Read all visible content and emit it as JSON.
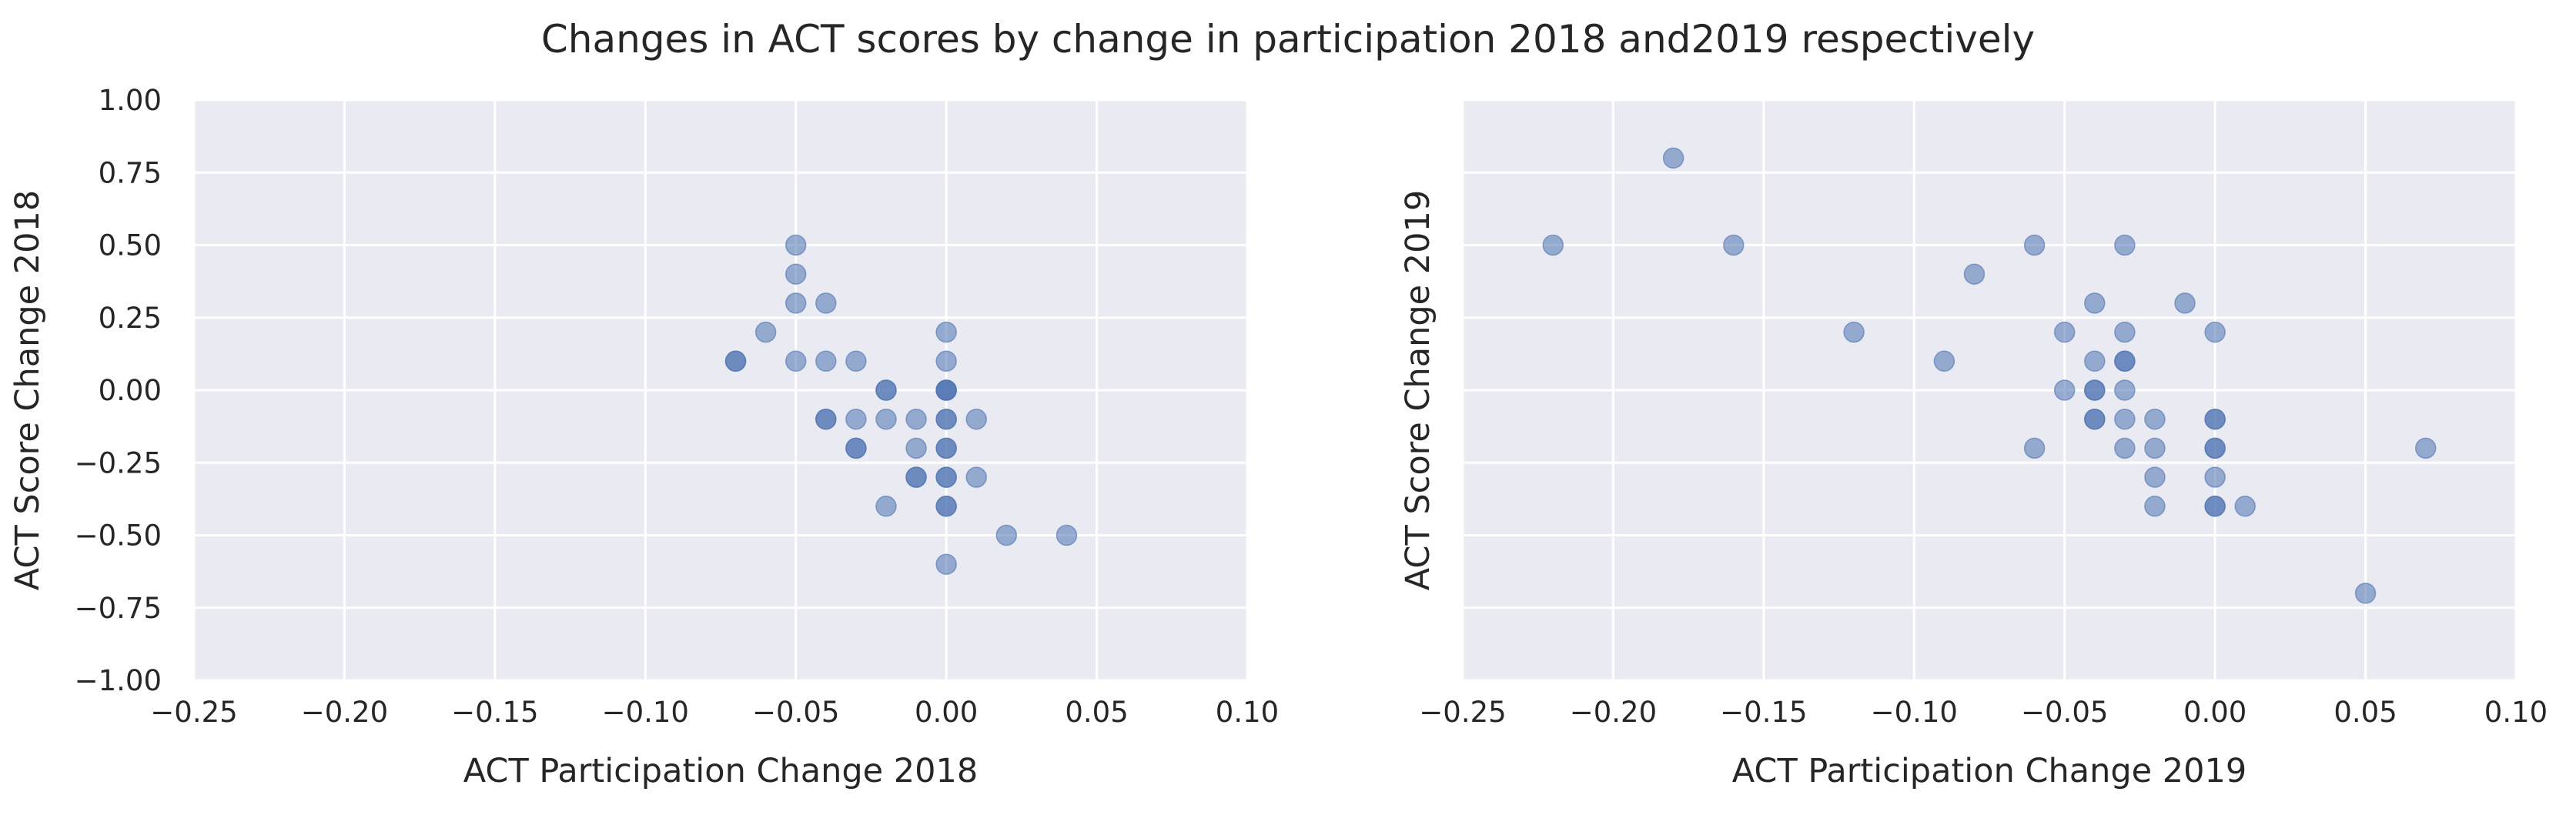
{
  "figure": {
    "title": "Changes in ACT scores by change in participation 2018 and2019 respectively"
  },
  "chart_data": [
    {
      "type": "scatter",
      "xlabel": "ACT Participation Change 2018",
      "ylabel": "ACT Score Change 2018",
      "xlim": [
        -0.25,
        0.1
      ],
      "ylim": [
        -1.0,
        1.0
      ],
      "xticks": [
        "−0.25",
        "−0.20",
        "−0.15",
        "−0.10",
        "−0.05",
        "0.00",
        "0.05",
        "0.10"
      ],
      "yticks": [
        "−1.00",
        "−0.75",
        "−0.50",
        "−0.25",
        "0.00",
        "0.25",
        "0.50",
        "0.75",
        "1.00"
      ],
      "grid": true,
      "marker_color": "#4c72b0",
      "points": [
        [
          -0.07,
          0.1
        ],
        [
          -0.07,
          0.1
        ],
        [
          -0.06,
          0.2
        ],
        [
          -0.05,
          0.5
        ],
        [
          -0.05,
          0.4
        ],
        [
          -0.05,
          0.3
        ],
        [
          -0.05,
          0.1
        ],
        [
          -0.04,
          0.3
        ],
        [
          -0.04,
          0.1
        ],
        [
          -0.04,
          -0.1
        ],
        [
          -0.04,
          -0.1
        ],
        [
          -0.03,
          0.1
        ],
        [
          -0.03,
          -0.1
        ],
        [
          -0.03,
          -0.2
        ],
        [
          -0.03,
          -0.2
        ],
        [
          -0.02,
          0.0
        ],
        [
          -0.02,
          0.0
        ],
        [
          -0.02,
          -0.1
        ],
        [
          -0.02,
          -0.4
        ],
        [
          -0.01,
          -0.1
        ],
        [
          -0.01,
          -0.2
        ],
        [
          -0.01,
          -0.3
        ],
        [
          -0.01,
          -0.3
        ],
        [
          0.0,
          0.2
        ],
        [
          0.0,
          0.1
        ],
        [
          0.0,
          0.0
        ],
        [
          0.0,
          0.0
        ],
        [
          0.0,
          0.0
        ],
        [
          0.0,
          -0.1
        ],
        [
          0.0,
          -0.1
        ],
        [
          0.0,
          -0.2
        ],
        [
          0.0,
          -0.2
        ],
        [
          0.0,
          -0.3
        ],
        [
          0.0,
          -0.3
        ],
        [
          0.0,
          -0.4
        ],
        [
          0.0,
          -0.4
        ],
        [
          0.0,
          -0.6
        ],
        [
          0.01,
          -0.1
        ],
        [
          0.01,
          -0.3
        ],
        [
          0.02,
          -0.5
        ],
        [
          0.04,
          -0.5
        ]
      ]
    },
    {
      "type": "scatter",
      "xlabel": "ACT Participation Change 2019",
      "ylabel": "ACT Score Change 2019",
      "xlim": [
        -0.25,
        0.1
      ],
      "ylim": [
        -1.0,
        1.0
      ],
      "xticks": [
        "−0.25",
        "−0.20",
        "−0.15",
        "−0.10",
        "−0.05",
        "0.00",
        "0.05",
        "0.10"
      ],
      "yticks": [],
      "grid": true,
      "marker_color": "#4c72b0",
      "points": [
        [
          -0.22,
          0.5
        ],
        [
          -0.18,
          0.8
        ],
        [
          -0.16,
          0.5
        ],
        [
          -0.12,
          0.2
        ],
        [
          -0.09,
          0.1
        ],
        [
          -0.08,
          0.4
        ],
        [
          -0.06,
          0.5
        ],
        [
          -0.06,
          -0.2
        ],
        [
          -0.05,
          0.2
        ],
        [
          -0.05,
          0.0
        ],
        [
          -0.04,
          0.3
        ],
        [
          -0.04,
          0.1
        ],
        [
          -0.04,
          0.0
        ],
        [
          -0.04,
          0.0
        ],
        [
          -0.04,
          -0.1
        ],
        [
          -0.04,
          -0.1
        ],
        [
          -0.03,
          0.5
        ],
        [
          -0.03,
          0.2
        ],
        [
          -0.03,
          0.1
        ],
        [
          -0.03,
          0.1
        ],
        [
          -0.03,
          0.0
        ],
        [
          -0.03,
          -0.1
        ],
        [
          -0.03,
          -0.2
        ],
        [
          -0.02,
          -0.1
        ],
        [
          -0.02,
          -0.2
        ],
        [
          -0.02,
          -0.3
        ],
        [
          -0.02,
          -0.4
        ],
        [
          -0.01,
          0.3
        ],
        [
          0.0,
          0.2
        ],
        [
          0.0,
          -0.1
        ],
        [
          0.0,
          -0.1
        ],
        [
          0.0,
          -0.2
        ],
        [
          0.0,
          -0.2
        ],
        [
          0.0,
          -0.3
        ],
        [
          0.0,
          -0.4
        ],
        [
          0.0,
          -0.4
        ],
        [
          0.01,
          -0.4
        ],
        [
          0.05,
          -0.7
        ],
        [
          0.07,
          -0.2
        ]
      ]
    }
  ]
}
